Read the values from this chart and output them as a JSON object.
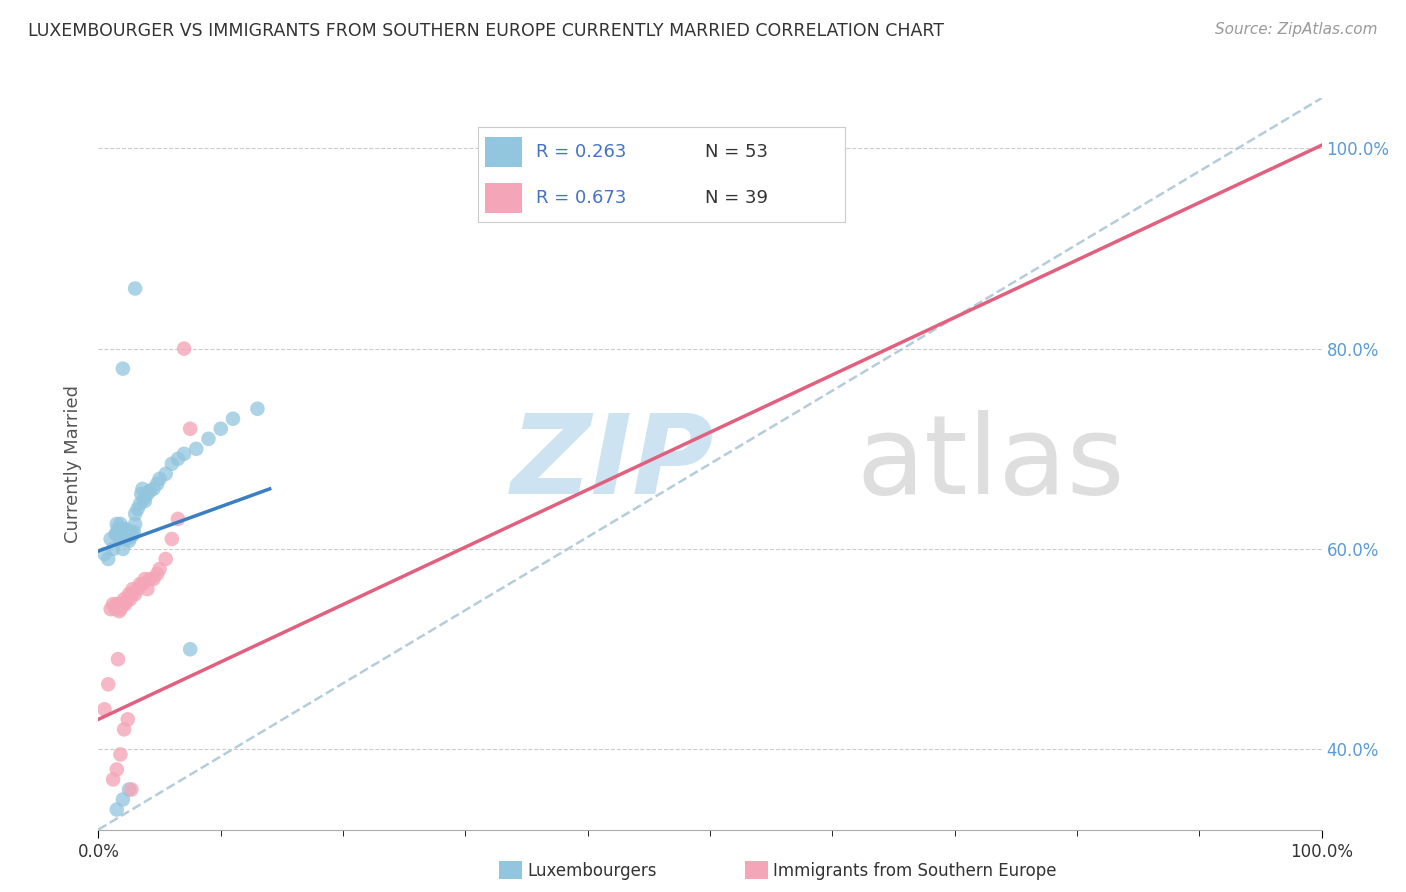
{
  "title": "LUXEMBOURGER VS IMMIGRANTS FROM SOUTHERN EUROPE CURRENTLY MARRIED CORRELATION CHART",
  "source": "Source: ZipAtlas.com",
  "ylabel": "Currently Married",
  "xlim": [
    0.0,
    1.0
  ],
  "ylim": [
    0.32,
    1.05
  ],
  "y_tick_vals": [
    0.4,
    0.6,
    0.8,
    1.0
  ],
  "y_tick_labels": [
    "40.0%",
    "60.0%",
    "80.0%",
    "100.0%"
  ],
  "x_tick_major": [
    0.0,
    1.0
  ],
  "x_tick_minor_step": 0.1,
  "blue_color": "#92c5de",
  "pink_color": "#f4a6b8",
  "blue_line_color": "#3a7fc1",
  "pink_line_color": "#e0607e",
  "dashed_line_color": "#adc8d8",
  "legend_R1": "R = 0.263",
  "legend_N1": "N = 53",
  "legend_R2": "R = 0.673",
  "legend_N2": "N = 39",
  "blue_scatter_x": [
    0.005,
    0.008,
    0.01,
    0.012,
    0.014,
    0.015,
    0.015,
    0.016,
    0.017,
    0.018,
    0.018,
    0.019,
    0.02,
    0.02,
    0.021,
    0.022,
    0.022,
    0.023,
    0.024,
    0.025,
    0.025,
    0.026,
    0.027,
    0.028,
    0.029,
    0.03,
    0.03,
    0.032,
    0.034,
    0.035,
    0.036,
    0.037,
    0.038,
    0.04,
    0.042,
    0.045,
    0.048,
    0.05,
    0.055,
    0.06,
    0.065,
    0.07,
    0.08,
    0.09,
    0.1,
    0.11,
    0.13,
    0.015,
    0.02,
    0.025,
    0.03,
    0.075,
    0.02
  ],
  "blue_scatter_y": [
    0.595,
    0.59,
    0.61,
    0.6,
    0.615,
    0.615,
    0.625,
    0.62,
    0.618,
    0.61,
    0.625,
    0.615,
    0.6,
    0.62,
    0.615,
    0.61,
    0.62,
    0.61,
    0.615,
    0.608,
    0.618,
    0.612,
    0.616,
    0.614,
    0.617,
    0.625,
    0.635,
    0.64,
    0.645,
    0.655,
    0.66,
    0.65,
    0.648,
    0.655,
    0.658,
    0.66,
    0.665,
    0.67,
    0.675,
    0.685,
    0.69,
    0.695,
    0.7,
    0.71,
    0.72,
    0.73,
    0.74,
    0.34,
    0.35,
    0.36,
    0.86,
    0.5,
    0.78
  ],
  "pink_scatter_x": [
    0.005,
    0.008,
    0.01,
    0.012,
    0.014,
    0.015,
    0.016,
    0.017,
    0.018,
    0.02,
    0.021,
    0.022,
    0.023,
    0.025,
    0.026,
    0.027,
    0.028,
    0.03,
    0.032,
    0.034,
    0.036,
    0.038,
    0.04,
    0.042,
    0.045,
    0.048,
    0.05,
    0.055,
    0.06,
    0.065,
    0.07,
    0.012,
    0.015,
    0.018,
    0.021,
    0.024,
    0.027,
    0.075,
    0.016
  ],
  "pink_scatter_y": [
    0.44,
    0.465,
    0.54,
    0.545,
    0.54,
    0.545,
    0.545,
    0.538,
    0.54,
    0.545,
    0.55,
    0.545,
    0.548,
    0.555,
    0.55,
    0.555,
    0.56,
    0.555,
    0.56,
    0.565,
    0.565,
    0.57,
    0.56,
    0.57,
    0.57,
    0.575,
    0.58,
    0.59,
    0.61,
    0.63,
    0.8,
    0.37,
    0.38,
    0.395,
    0.42,
    0.43,
    0.36,
    0.72,
    0.49
  ],
  "blue_line_x": [
    0.0,
    0.14
  ],
  "blue_line_y": [
    0.598,
    0.66
  ],
  "pink_line_x": [
    0.0,
    1.0
  ],
  "pink_line_y": [
    0.43,
    1.003
  ],
  "diag_line_x": [
    0.0,
    1.0
  ],
  "diag_line_y": [
    0.32,
    1.05
  ]
}
